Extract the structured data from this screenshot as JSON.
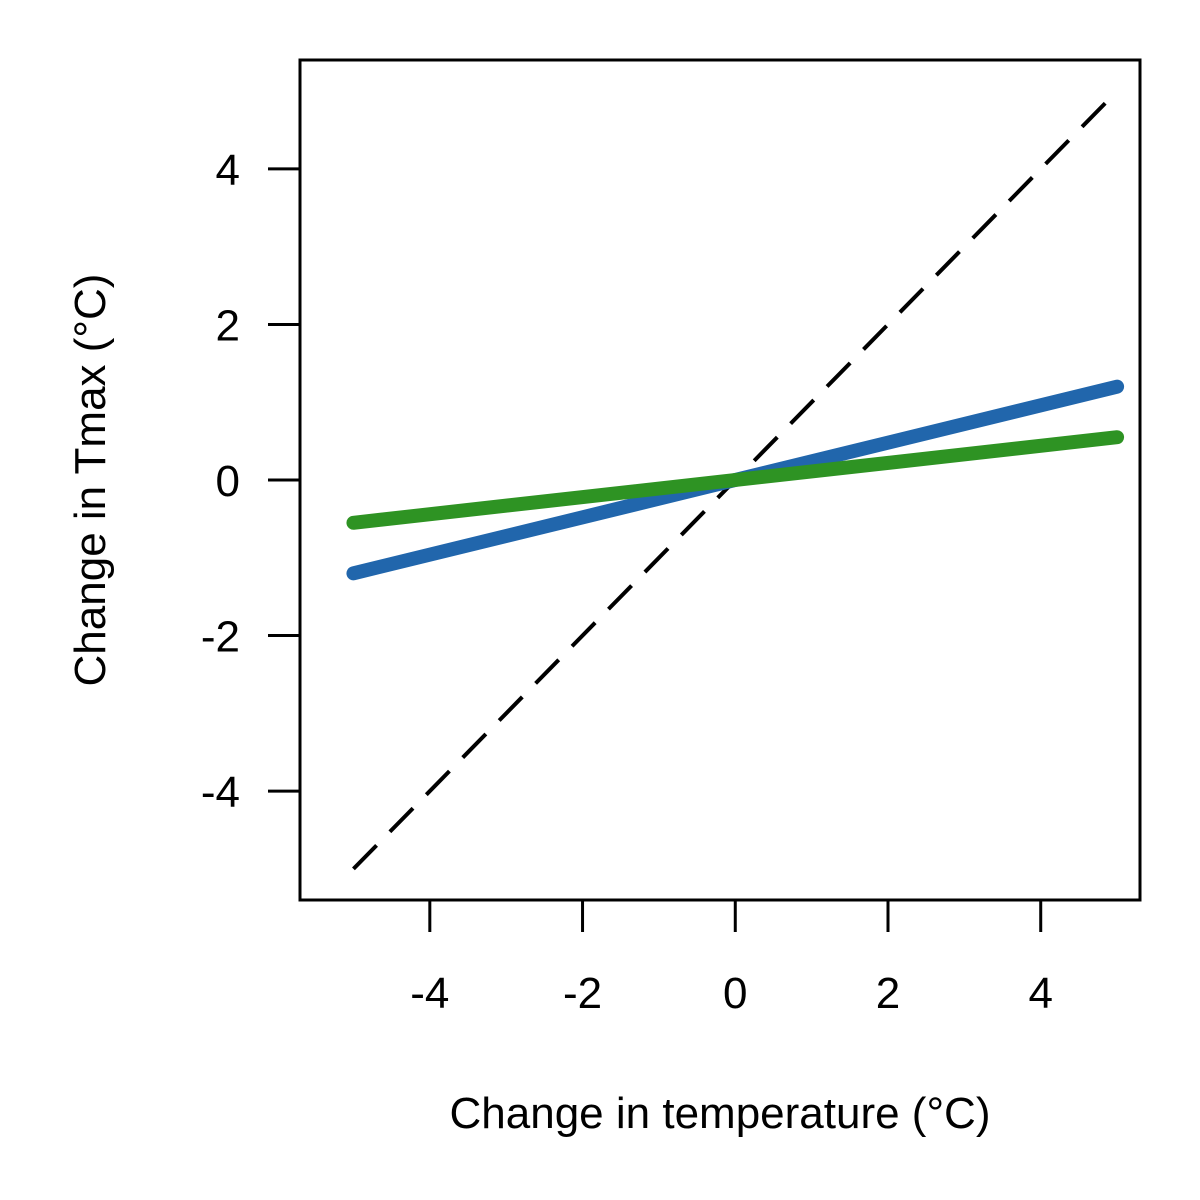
{
  "chart_data": {
    "type": "line",
    "title": "",
    "xlabel": "Change in temperature (°C)",
    "ylabel": "Change in Tmax (°C)",
    "xlim": [
      -5.7,
      5.3
    ],
    "ylim": [
      -5.4,
      5.4
    ],
    "xticks": [
      -4,
      -2,
      0,
      2,
      4
    ],
    "yticks": [
      -4,
      -2,
      0,
      2,
      4
    ],
    "xtick_labels": [
      "-4",
      "-2",
      "0",
      "2",
      "4"
    ],
    "ytick_labels": [
      "-4",
      "-2",
      "0",
      "2",
      "4"
    ],
    "grid": false,
    "legend": false,
    "series": [
      {
        "x": [
          -5,
          5
        ],
        "y": [
          -5,
          5
        ],
        "color": "#000000",
        "dash": "dashed"
      },
      {
        "x": [
          -5,
          5
        ],
        "y": [
          -1.2,
          1.2
        ],
        "color": "#2166ac",
        "dash": "solid"
      },
      {
        "x": [
          -5,
          5
        ],
        "y": [
          -0.55,
          0.55
        ],
        "color": "#2e9323",
        "dash": "solid"
      }
    ]
  }
}
